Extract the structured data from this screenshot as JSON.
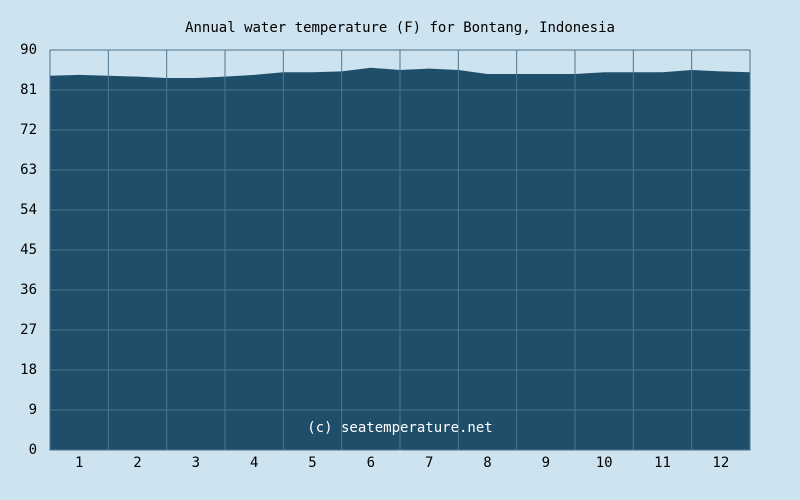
{
  "chart_data": {
    "type": "area",
    "title": "Annual water temperature (F) for Bontang, Indonesia",
    "annotation": "(c) seatemperature.net",
    "x": [
      0,
      0.5,
      1,
      1.5,
      2,
      2.5,
      3,
      3.5,
      4,
      4.5,
      5,
      5.5,
      6,
      6.5,
      7,
      7.5,
      8,
      8.5,
      9,
      9.5,
      10,
      10.5,
      11,
      11.5,
      12
    ],
    "values": [
      84.2,
      84.4,
      84.2,
      84.0,
      83.7,
      83.7,
      84.0,
      84.4,
      85.0,
      85.0,
      85.2,
      86.0,
      85.5,
      85.8,
      85.5,
      84.6,
      84.6,
      84.6,
      84.6,
      85.0,
      85.0,
      85.0,
      85.5,
      85.2,
      85.0
    ],
    "color": "#1f4e6b",
    "xlim": [
      0,
      12
    ],
    "xticks": [
      {
        "value": 0.5,
        "label": "1"
      },
      {
        "value": 1.5,
        "label": "2"
      },
      {
        "value": 2.5,
        "label": "3"
      },
      {
        "value": 3.5,
        "label": "4"
      },
      {
        "value": 4.5,
        "label": "5"
      },
      {
        "value": 5.5,
        "label": "6"
      },
      {
        "value": 6.5,
        "label": "7"
      },
      {
        "value": 7.5,
        "label": "8"
      },
      {
        "value": 8.5,
        "label": "9"
      },
      {
        "value": 9.5,
        "label": "10"
      },
      {
        "value": 10.5,
        "label": "11"
      },
      {
        "value": 11.5,
        "label": "12"
      }
    ],
    "ylim": [
      0,
      90
    ],
    "yticks": [
      0,
      9,
      18,
      27,
      36,
      45,
      54,
      63,
      72,
      81,
      90
    ],
    "grid": true
  }
}
